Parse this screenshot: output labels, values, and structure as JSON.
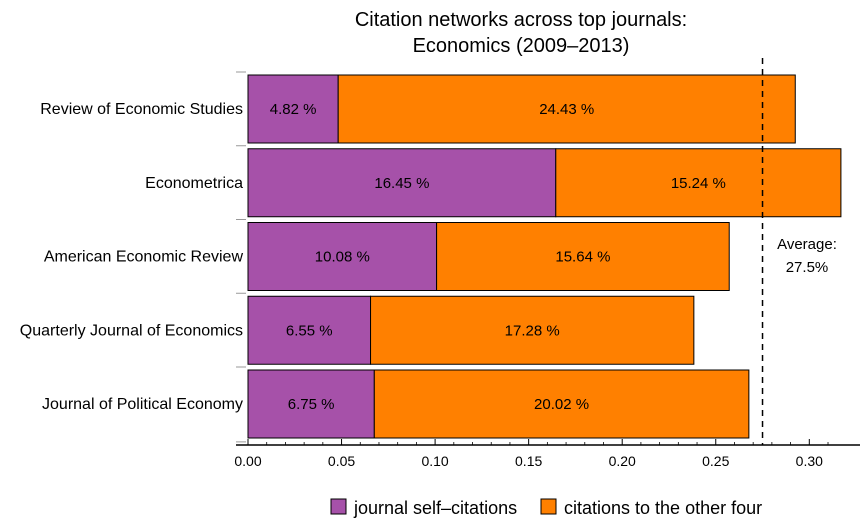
{
  "chart_data": {
    "type": "bar",
    "orientation": "horizontal",
    "stacked": true,
    "title_lines": [
      "Citation networks across top journals:",
      "Economics (2009–2013)"
    ],
    "categories": [
      "Review of Economic Studies",
      "Econometrica",
      "American Economic Review",
      "Quarterly Journal of Economics",
      "Journal of Political Economy"
    ],
    "series": [
      {
        "name": "journal self–citations",
        "color": "#a651a9",
        "values": [
          0.0482,
          0.1645,
          0.1008,
          0.0655,
          0.0675
        ],
        "labels": [
          "4.82 %",
          "16.45 %",
          "10.08 %",
          "6.55 %",
          "6.75 %"
        ]
      },
      {
        "name": "citations to the other four",
        "color": "#ff8000",
        "values": [
          0.2443,
          0.1524,
          0.1564,
          0.1728,
          0.2002
        ],
        "labels": [
          "24.43 %",
          "15.24 %",
          "15.64 %",
          "17.28 %",
          "20.02 %"
        ]
      }
    ],
    "xlim": [
      0,
      0.325
    ],
    "xticks": [
      0.0,
      0.05,
      0.1,
      0.15,
      0.2,
      0.25,
      0.3
    ],
    "xtick_labels": [
      "0.00",
      "0.05",
      "0.10",
      "0.15",
      "0.20",
      "0.25",
      "0.30"
    ],
    "reference_line": {
      "value": 0.275,
      "style": "dashed",
      "label_lines": [
        "Average:",
        "27.5%"
      ]
    },
    "legend": {
      "placement": "bottom"
    },
    "grid": false
  }
}
